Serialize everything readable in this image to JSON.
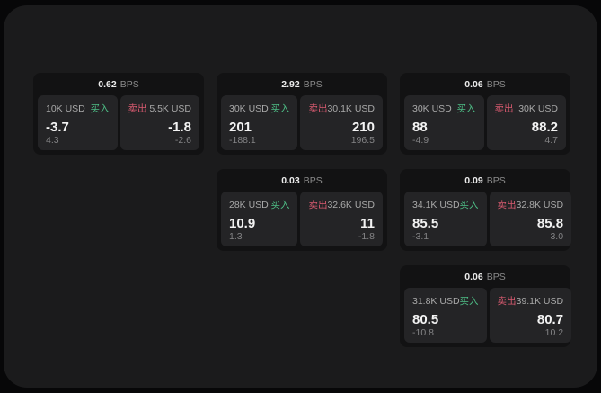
{
  "colors": {
    "buy_accent": "#4ebe86",
    "sell_accent": "#d95a70",
    "surface": "#1b1b1c",
    "card_bg": "#121213",
    "panel_bg": "#242426"
  },
  "bps_unit_label": "BPS",
  "cards": [
    {
      "row": 1,
      "col": 1,
      "bps_value": "0.62",
      "bps_unit": "BPS",
      "buy": {
        "amount": "10K USD",
        "side_label": "买入",
        "price": "-3.7",
        "delta": "4.3"
      },
      "sell": {
        "amount": "5.5K USD",
        "side_label": "卖出",
        "price": "-1.8",
        "delta": "-2.6"
      }
    },
    {
      "row": 1,
      "col": 2,
      "bps_value": "2.92",
      "bps_unit": "BPS",
      "buy": {
        "amount": "30K USD",
        "side_label": "买入",
        "price": "201",
        "delta": "-188.1"
      },
      "sell": {
        "amount": "30.1K USD",
        "side_label": "卖出",
        "price": "210",
        "delta": "196.5"
      }
    },
    {
      "row": 1,
      "col": 3,
      "bps_value": "0.06",
      "bps_unit": "BPS",
      "buy": {
        "amount": "30K USD",
        "side_label": "买入",
        "price": "88",
        "delta": "-4.9"
      },
      "sell": {
        "amount": "30K USD",
        "side_label": "卖出",
        "price": "88.2",
        "delta": "4.7"
      }
    },
    {
      "row": 2,
      "col": 2,
      "bps_value": "0.03",
      "bps_unit": "BPS",
      "buy": {
        "amount": "28K USD",
        "side_label": "买入",
        "price": "10.9",
        "delta": "1.3"
      },
      "sell": {
        "amount": "32.6K USD",
        "side_label": "卖出",
        "price": "11",
        "delta": "-1.8"
      }
    },
    {
      "row": 2,
      "col": 3,
      "bps_value": "0.09",
      "bps_unit": "BPS",
      "buy": {
        "amount": "34.1K USD",
        "side_label": "买入",
        "price": "85.5",
        "delta": "-3.1"
      },
      "sell": {
        "amount": "32.8K USD",
        "side_label": "卖出",
        "price": "85.8",
        "delta": "3.0"
      }
    },
    {
      "row": 3,
      "col": 3,
      "bps_value": "0.06",
      "bps_unit": "BPS",
      "buy": {
        "amount": "31.8K USD",
        "side_label": "买入",
        "price": "80.5",
        "delta": "-10.8"
      },
      "sell": {
        "amount": "39.1K USD",
        "side_label": "卖出",
        "price": "80.7",
        "delta": "10.2"
      }
    }
  ]
}
